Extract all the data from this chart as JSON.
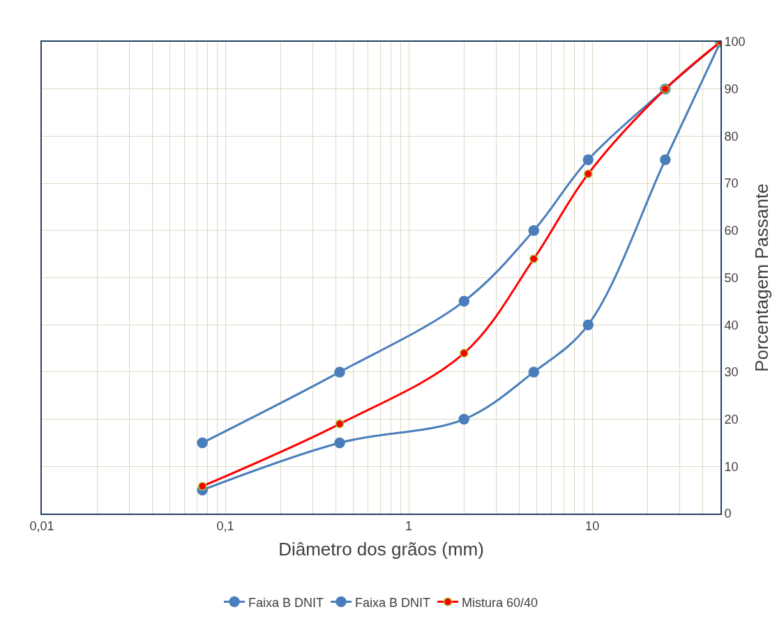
{
  "chart_data": {
    "type": "line",
    "xlabel": "Diâmetro dos grãos (mm)",
    "ylabel": "Porcentagem Passante",
    "x": [
      0.075,
      0.42,
      2.0,
      4.8,
      9.5,
      25,
      50
    ],
    "series": [
      {
        "name": "Faixa B DNIT",
        "color": "#4a7ebb",
        "values": [
          15,
          30,
          45,
          60,
          75,
          90,
          100
        ]
      },
      {
        "name": "Faixa B DNIT",
        "color": "#4a7ebb",
        "values": [
          5,
          15,
          20,
          30,
          40,
          75,
          100
        ]
      },
      {
        "name": "Mistura 60/40",
        "color": "#ff0000",
        "values": [
          5.8,
          19,
          34,
          54,
          72,
          90,
          100
        ]
      }
    ],
    "log": "x",
    "xlim": [
      0.01,
      50
    ],
    "xticks": [
      {
        "value": 0.01,
        "label": "0,01"
      },
      {
        "value": 0.1,
        "label": "0,1"
      },
      1,
      10
    ],
    "ylim": [
      0,
      100
    ],
    "yticks": [
      0,
      10,
      20,
      30,
      40,
      50,
      60,
      70,
      80,
      90,
      100
    ],
    "grid": true,
    "legend": "bottom",
    "marker": "circle"
  }
}
